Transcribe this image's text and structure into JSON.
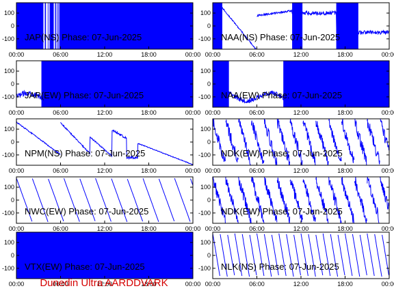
{
  "footer": {
    "text": "Dunedin Ultra AARDDVARK",
    "color": "#d40000"
  },
  "colors": {
    "signal": "#0000ff",
    "frame": "#000000"
  },
  "chart_data": [
    {
      "type": "line",
      "title": "JAP(NS) Phase: 07-Jun-2025",
      "ylim": [
        -180,
        180
      ],
      "yticks": [
        "100",
        "0",
        "-100"
      ],
      "xticks": [
        "00:00",
        "06:00",
        "12:00",
        "18:00",
        "00:00"
      ],
      "grid": false,
      "pattern": "dense-top",
      "active_hours": [
        [
          0,
          24
        ]
      ]
    },
    {
      "type": "line",
      "title": "NAA(NS) Phase: 07-Jun-2025",
      "ylim": [
        -180,
        180
      ],
      "yticks": [
        "100",
        "0",
        "-100"
      ],
      "xticks": [
        "00:00",
        "06:00",
        "12:00",
        "18:00",
        "00:00"
      ],
      "grid": false,
      "pattern": "mixed",
      "active_hours": [
        [
          0,
          1.3
        ],
        [
          10.8,
          12.2
        ],
        [
          16.8,
          19.8
        ]
      ]
    },
    {
      "type": "line",
      "title": "JAP(EW) Phase: 07-Jun-2025",
      "ylim": [
        -180,
        180
      ],
      "yticks": [
        "100",
        "0",
        "-100"
      ],
      "xticks": [
        "00:00",
        "06:00",
        "12:00",
        "18:00",
        "00:00"
      ],
      "grid": false,
      "pattern": "dense",
      "active_hours": [
        [
          3.4,
          24
        ]
      ]
    },
    {
      "type": "line",
      "title": "NAA(EW) Phase: 07-Jun-2025",
      "ylim": [
        -180,
        180
      ],
      "yticks": [
        "100",
        "0",
        "-100"
      ],
      "xticks": [
        "00:00",
        "06:00",
        "12:00",
        "18:00",
        "00:00"
      ],
      "grid": false,
      "pattern": "dense",
      "active_hours": [
        [
          0,
          2.2
        ],
        [
          9.6,
          24
        ]
      ]
    },
    {
      "type": "line",
      "title": "NPM(NS) Phase: 07-Jun-2025",
      "ylim": [
        -180,
        180
      ],
      "yticks": [
        "100",
        "0",
        "-100"
      ],
      "xticks": [
        "00:00",
        "06:00",
        "12:00",
        "18:00",
        "00:00"
      ],
      "grid": false,
      "pattern": "drift",
      "active_hours": []
    },
    {
      "type": "line",
      "title": "NDK(EW) Phase: 07-Jun-2025",
      "ylim": [
        -180,
        180
      ],
      "yticks": [
        "100",
        "0",
        "-100"
      ],
      "xticks": [
        "00:00",
        "06:00",
        "12:00",
        "18:00",
        "00:00"
      ],
      "grid": false,
      "pattern": "sawtooth-noisy",
      "period_hours": 1.75,
      "active_hours": []
    },
    {
      "type": "line",
      "title": "NWC(EW) Phase: 07-Jun-2025",
      "ylim": [
        -180,
        180
      ],
      "yticks": [
        "100",
        "0",
        "-100"
      ],
      "xticks": [
        "00:00",
        "06:00",
        "12:00",
        "18:00",
        "00:00"
      ],
      "grid": false,
      "pattern": "sawtooth",
      "period_hours": 2.15,
      "active_hours": []
    },
    {
      "type": "line",
      "title": "NDK(EW) Phase: 07-Jun-2025",
      "ylim": [
        -180,
        180
      ],
      "yticks": [
        "100",
        "0",
        "-100"
      ],
      "xticks": [
        "00:00",
        "06:00",
        "12:00",
        "18:00",
        "00:00"
      ],
      "grid": false,
      "pattern": "sawtooth-noisy",
      "period_hours": 1.75,
      "active_hours": []
    },
    {
      "type": "line",
      "title": "VTX(EW) Phase: 07-Jun-2025",
      "ylim": [
        -180,
        180
      ],
      "yticks": [
        "100",
        "0",
        "-100"
      ],
      "xticks": [
        "00:00",
        "06:00",
        "12:00",
        "18:00",
        "00:00"
      ],
      "grid": false,
      "pattern": "dense",
      "active_hours": [
        [
          0,
          24
        ]
      ]
    },
    {
      "type": "line",
      "title": "NLK(NS) Phase: 07-Jun-2025",
      "ylim": [
        -180,
        180
      ],
      "yticks": [
        "100",
        "0",
        "-100"
      ],
      "xticks": [
        "00:00",
        "06:00",
        "12:00",
        "18:00",
        "00:00"
      ],
      "grid": false,
      "pattern": "sawtooth",
      "period_hours": 1.0,
      "active_hours": []
    }
  ]
}
